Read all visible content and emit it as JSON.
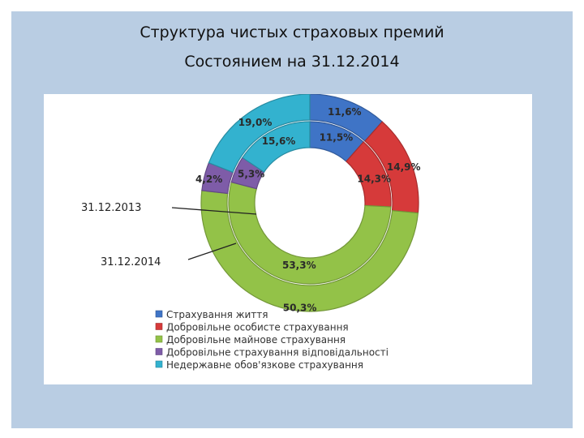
{
  "title": {
    "line1": "Структура чистых страховых премий",
    "line2": "Состоянием на 31.12.2014"
  },
  "chart_data": {
    "type": "donut",
    "categories": [
      "Страхування життя",
      "Добровільне особисте страхування",
      "Добровільне майнове страхування",
      "Добровільне страхування відповідальності",
      "Недержавне обов'язкове страхування"
    ],
    "colors": [
      "#3f74c6",
      "#d63a3a",
      "#93c248",
      "#7e5ca8",
      "#33b2cf"
    ],
    "series": [
      {
        "name": "31.12.2014",
        "ring": "outer",
        "values": [
          11.6,
          14.9,
          50.3,
          4.2,
          19.0
        ],
        "labels": [
          "11,6%",
          "14,9%",
          "50,3%",
          "4,2%",
          "19,0%"
        ]
      },
      {
        "name": "31.12.2013",
        "ring": "inner",
        "values": [
          11.5,
          14.3,
          53.3,
          5.3,
          15.6
        ],
        "labels": [
          "11,5%",
          "14,3%",
          "53,3%",
          "5,3%",
          "15,6%"
        ]
      }
    ],
    "legend": "bottom-left"
  }
}
